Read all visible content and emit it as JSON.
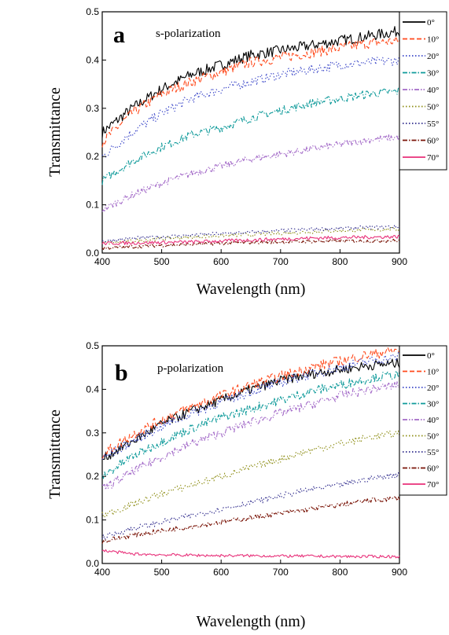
{
  "chart_data": [
    {
      "type": "line",
      "panel_label": "a",
      "annotation": "s-polarization",
      "xlabel": "Wavelength (nm)",
      "ylabel": "Transmittance",
      "xlim": [
        400,
        900
      ],
      "ylim": [
        0.0,
        0.5
      ],
      "xticks": [
        "400",
        "500",
        "600",
        "700",
        "800",
        "900"
      ],
      "yticks": [
        "0.0",
        "0.1",
        "0.2",
        "0.3",
        "0.4",
        "0.5"
      ],
      "legend_position": "right-outside",
      "grid": false,
      "x": [
        400,
        450,
        500,
        550,
        600,
        650,
        700,
        750,
        800,
        850,
        900
      ],
      "series": [
        {
          "name": "0°",
          "color": "#000000",
          "dash": "solid",
          "values": [
            0.25,
            0.3,
            0.34,
            0.37,
            0.39,
            0.41,
            0.42,
            0.43,
            0.44,
            0.45,
            0.46
          ]
        },
        {
          "name": "10°",
          "color": "#ff4a1c",
          "dash": "dash",
          "values": [
            0.23,
            0.29,
            0.33,
            0.355,
            0.375,
            0.395,
            0.405,
            0.415,
            0.425,
            0.435,
            0.44
          ]
        },
        {
          "name": "20°",
          "color": "#3a46c8",
          "dash": "dot",
          "values": [
            0.2,
            0.25,
            0.29,
            0.32,
            0.34,
            0.355,
            0.37,
            0.38,
            0.39,
            0.395,
            0.4
          ]
        },
        {
          "name": "30°",
          "color": "#0e9a9a",
          "dash": "dashdot",
          "values": [
            0.15,
            0.19,
            0.22,
            0.245,
            0.26,
            0.28,
            0.295,
            0.31,
            0.32,
            0.33,
            0.335
          ]
        },
        {
          "name": "40°",
          "color": "#a36ac8",
          "dash": "dashdotdot",
          "values": [
            0.09,
            0.12,
            0.145,
            0.165,
            0.18,
            0.195,
            0.205,
            0.215,
            0.225,
            0.235,
            0.24
          ]
        },
        {
          "name": "50°",
          "color": "#8c8c12",
          "dash": "dot",
          "values": [
            0.02,
            0.025,
            0.03,
            0.033,
            0.036,
            0.038,
            0.041,
            0.044,
            0.046,
            0.048,
            0.05
          ]
        },
        {
          "name": "55°",
          "color": "#2e2a8c",
          "dash": "dot",
          "values": [
            0.025,
            0.03,
            0.034,
            0.037,
            0.04,
            0.043,
            0.046,
            0.049,
            0.051,
            0.053,
            0.055
          ]
        },
        {
          "name": "60°",
          "color": "#7a1508",
          "dash": "dashdot",
          "values": [
            0.01,
            0.013,
            0.016,
            0.018,
            0.02,
            0.022,
            0.023,
            0.024,
            0.025,
            0.025,
            0.026
          ]
        },
        {
          "name": "70°",
          "color": "#e8317a",
          "dash": "solid",
          "values": [
            0.02,
            0.021,
            0.022,
            0.023,
            0.025,
            0.027,
            0.029,
            0.031,
            0.032,
            0.033,
            0.034
          ]
        }
      ]
    },
    {
      "type": "line",
      "panel_label": "b",
      "annotation": "p-polarization",
      "xlabel": "Wavelength (nm)",
      "ylabel": "Transmittance",
      "xlim": [
        400,
        900
      ],
      "ylim": [
        0.0,
        0.5
      ],
      "xticks": [
        "400",
        "500",
        "600",
        "700",
        "800",
        "900"
      ],
      "yticks": [
        "0.0",
        "0.1",
        "0.2",
        "0.3",
        "0.4",
        "0.5"
      ],
      "legend_position": "right-outside",
      "grid": false,
      "x": [
        400,
        450,
        500,
        550,
        600,
        650,
        700,
        750,
        800,
        850,
        900
      ],
      "series": [
        {
          "name": "0°",
          "color": "#000000",
          "dash": "solid",
          "values": [
            0.24,
            0.28,
            0.32,
            0.35,
            0.375,
            0.4,
            0.42,
            0.435,
            0.445,
            0.455,
            0.46
          ]
        },
        {
          "name": "10°",
          "color": "#ff4a1c",
          "dash": "dash",
          "values": [
            0.25,
            0.295,
            0.33,
            0.36,
            0.385,
            0.41,
            0.43,
            0.45,
            0.465,
            0.48,
            0.49
          ]
        },
        {
          "name": "20°",
          "color": "#3a46c8",
          "dash": "dot",
          "values": [
            0.24,
            0.28,
            0.315,
            0.345,
            0.37,
            0.395,
            0.415,
            0.435,
            0.45,
            0.465,
            0.475
          ]
        },
        {
          "name": "30°",
          "color": "#0e9a9a",
          "dash": "dashdot",
          "values": [
            0.2,
            0.245,
            0.28,
            0.31,
            0.335,
            0.355,
            0.375,
            0.395,
            0.41,
            0.425,
            0.435
          ]
        },
        {
          "name": "40°",
          "color": "#a36ac8",
          "dash": "dashdotdot",
          "values": [
            0.17,
            0.21,
            0.245,
            0.275,
            0.3,
            0.325,
            0.345,
            0.365,
            0.385,
            0.4,
            0.41
          ]
        },
        {
          "name": "50°",
          "color": "#8c8c12",
          "dash": "dot",
          "values": [
            0.11,
            0.135,
            0.16,
            0.18,
            0.2,
            0.22,
            0.24,
            0.26,
            0.275,
            0.29,
            0.3
          ]
        },
        {
          "name": "55°",
          "color": "#2e2a8c",
          "dash": "dot",
          "values": [
            0.06,
            0.08,
            0.095,
            0.11,
            0.125,
            0.14,
            0.155,
            0.17,
            0.18,
            0.195,
            0.205
          ]
        },
        {
          "name": "60°",
          "color": "#7a1508",
          "dash": "dashdot",
          "values": [
            0.05,
            0.065,
            0.075,
            0.085,
            0.095,
            0.105,
            0.115,
            0.125,
            0.135,
            0.145,
            0.15
          ]
        },
        {
          "name": "70°",
          "color": "#e8317a",
          "dash": "solid",
          "values": [
            0.03,
            0.022,
            0.02,
            0.019,
            0.018,
            0.018,
            0.017,
            0.017,
            0.016,
            0.016,
            0.016
          ]
        }
      ]
    }
  ]
}
